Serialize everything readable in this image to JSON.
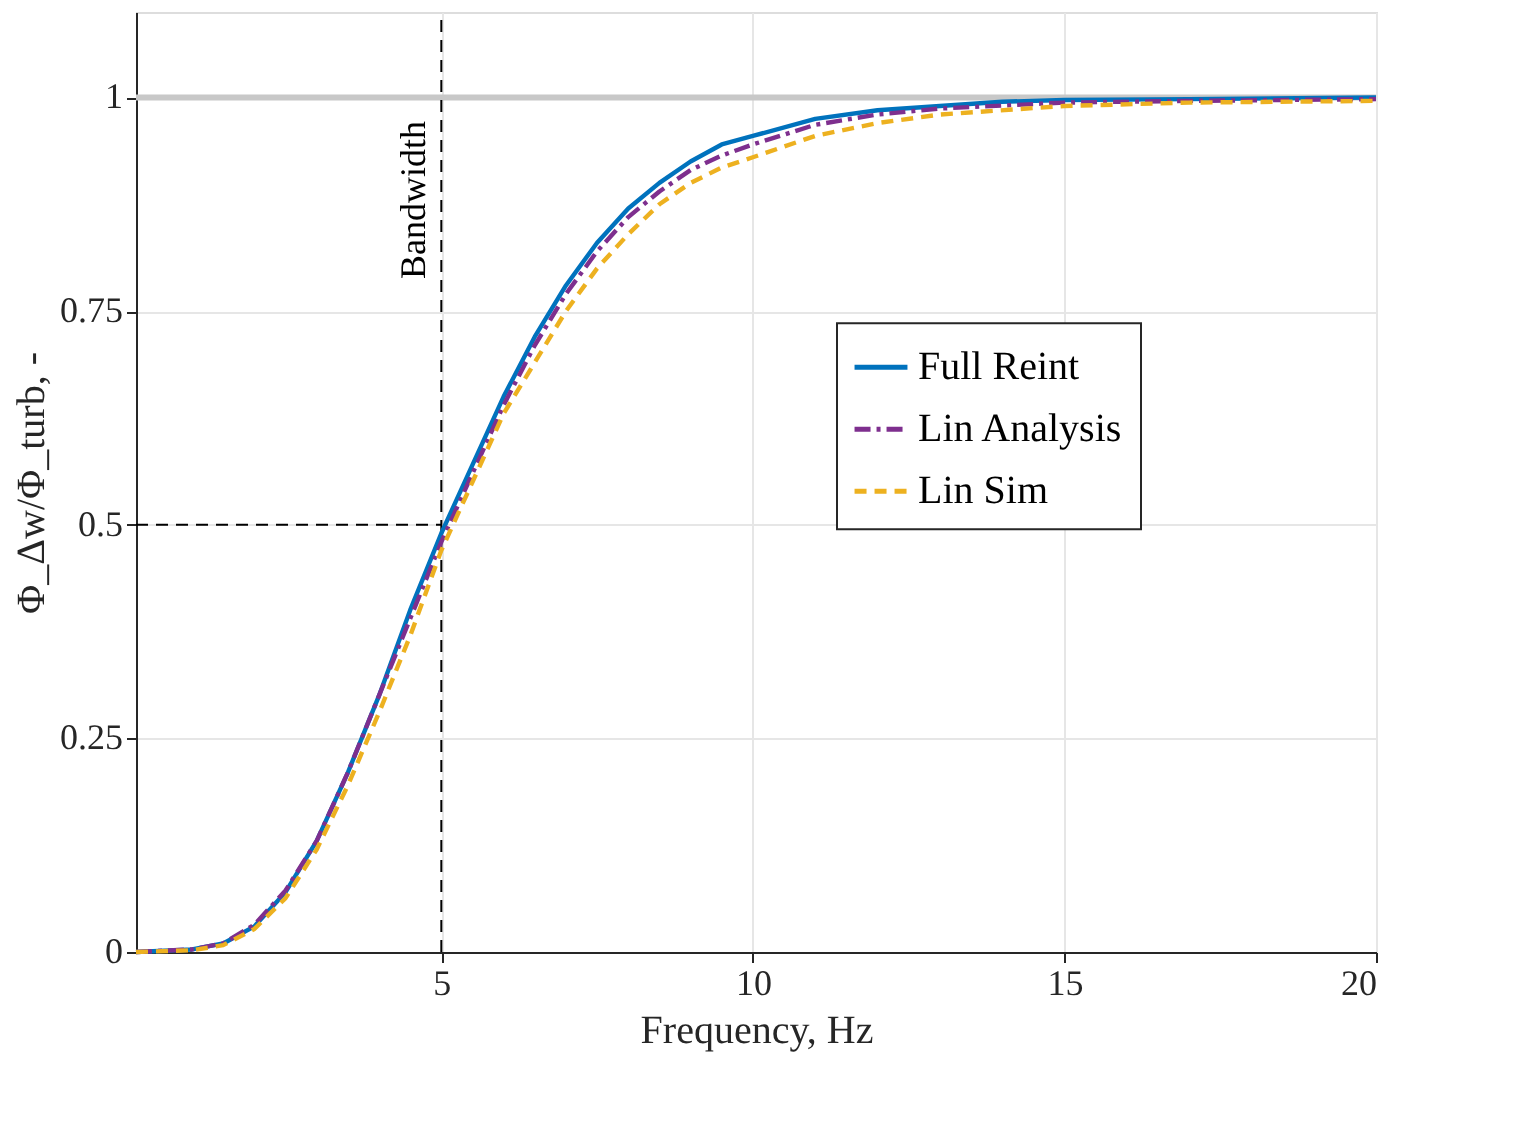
{
  "chart_data": {
    "type": "line",
    "xlabel": "Frequency, Hz",
    "ylabel": "Φ_Δw/Φ_turb, -",
    "xlim": [
      0.1,
      20
    ],
    "ylim": [
      0,
      1.1
    ],
    "xticks": [
      5,
      10,
      15,
      20
    ],
    "yticks": [
      0,
      0.25,
      0.5,
      0.75,
      1
    ],
    "grid": true,
    "legend": "right",
    "ref_lines": [
      {
        "axis": "y",
        "value": 1,
        "color": "#c8c8c8",
        "line_style": "solid"
      },
      {
        "axis": "x",
        "value": 5,
        "label": "Bandwidth",
        "color": "#000000",
        "line_style": "dashed"
      },
      {
        "axis": "y",
        "value": 0.5,
        "color": "#000000",
        "line_style": "dashed"
      }
    ],
    "series": [
      {
        "name": "Full Reint",
        "color": "#0072bd",
        "line_style": "solid",
        "x": [
          0.1,
          1,
          1.5,
          2,
          2.5,
          3,
          3.5,
          4,
          4.5,
          5,
          5.5,
          6,
          6.5,
          7,
          7.5,
          8,
          8.5,
          9,
          9.5,
          10,
          11,
          12,
          13,
          14,
          15,
          17,
          20
        ],
        "values": [
          0,
          0.003,
          0.01,
          0.03,
          0.07,
          0.13,
          0.21,
          0.3,
          0.4,
          0.49,
          0.57,
          0.65,
          0.72,
          0.78,
          0.83,
          0.87,
          0.9,
          0.925,
          0.945,
          0.955,
          0.975,
          0.985,
          0.99,
          0.995,
          0.997,
          0.998,
          1.0
        ]
      },
      {
        "name": "Lin Analysis",
        "color": "#7e2f8e",
        "line_style": "dotted",
        "x": [
          0.1,
          1,
          1.5,
          2,
          2.5,
          3,
          3.5,
          4,
          4.5,
          5,
          5.5,
          6,
          6.5,
          7,
          7.5,
          8,
          8.5,
          9,
          9.5,
          10,
          11,
          12,
          13,
          15,
          17,
          20
        ],
        "values": [
          0,
          0.003,
          0.01,
          0.032,
          0.072,
          0.13,
          0.21,
          0.3,
          0.39,
          0.48,
          0.56,
          0.64,
          0.71,
          0.77,
          0.82,
          0.86,
          0.89,
          0.915,
          0.932,
          0.945,
          0.968,
          0.98,
          0.987,
          0.994,
          0.996,
          0.998
        ]
      },
      {
        "name": "Lin Sim",
        "color": "#edb120",
        "line_style": "dashed",
        "x": [
          0.1,
          1,
          1.5,
          2,
          2.5,
          3,
          3.5,
          4,
          4.5,
          5,
          5.5,
          6,
          6.5,
          7,
          7.5,
          8,
          8.5,
          9,
          9.5,
          10,
          11,
          12,
          13,
          15,
          17,
          20
        ],
        "values": [
          0,
          0.002,
          0.008,
          0.027,
          0.063,
          0.12,
          0.195,
          0.28,
          0.37,
          0.47,
          0.55,
          0.63,
          0.69,
          0.75,
          0.8,
          0.84,
          0.875,
          0.9,
          0.918,
          0.93,
          0.955,
          0.97,
          0.98,
          0.99,
          0.994,
          0.996
        ]
      }
    ]
  }
}
